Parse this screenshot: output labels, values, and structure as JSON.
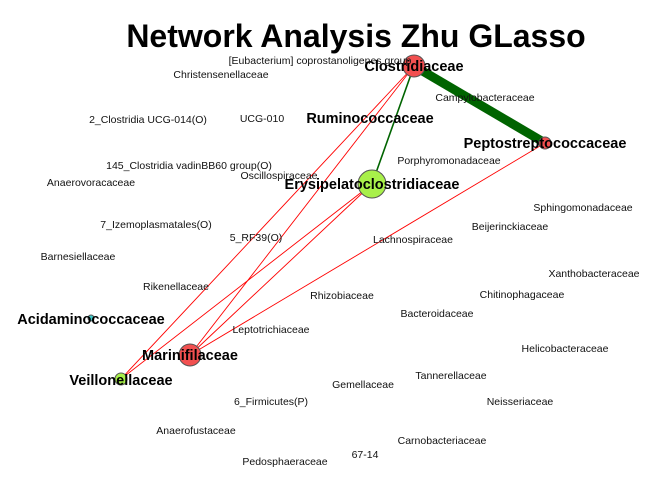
{
  "title": "Network Analysis Zhu GLasso",
  "colors": {
    "negative_edge": "#ff0000",
    "positive_edge": "#006400",
    "node_red": "#f25050",
    "node_green": "#a8f04a",
    "node_cyan": "#40c8c8",
    "node_stroke": "#555555"
  },
  "nodes": [
    {
      "name": "Clostridiaceae",
      "prominent": true,
      "color": "red"
    },
    {
      "name": "Peptostreptococcaceae",
      "prominent": true,
      "color": "red"
    },
    {
      "name": "Erysipelatoclostridiaceae",
      "prominent": true,
      "color": "green"
    },
    {
      "name": "Marinifilaceae",
      "prominent": true,
      "color": "red"
    },
    {
      "name": "Veillonellaceae",
      "prominent": true,
      "color": "green"
    },
    {
      "name": "Acidaminococcaceae",
      "prominent": true,
      "color": "cyan"
    },
    {
      "name": "Ruminococcaceae",
      "prominent": true
    },
    {
      "name": "[Eubacterium] coprostanoligenes group",
      "prominent": false
    },
    {
      "name": "Christensenellaceae",
      "prominent": false
    },
    {
      "name": "Campylobacteraceae",
      "prominent": false
    },
    {
      "name": "2_Clostridia UCG-014(O)",
      "prominent": false
    },
    {
      "name": "UCG-010",
      "prominent": false
    },
    {
      "name": "Porphyromonadaceae",
      "prominent": false
    },
    {
      "name": "145_Clostridia vadinBB60 group(O)",
      "prominent": false
    },
    {
      "name": "Oscillospiraceae",
      "prominent": false
    },
    {
      "name": "Anaerovoracaceae",
      "prominent": false
    },
    {
      "name": "Sphingomonadaceae",
      "prominent": false
    },
    {
      "name": "7_Izemoplasmatales(O)",
      "prominent": false
    },
    {
      "name": "Beijerinckiaceae",
      "prominent": false
    },
    {
      "name": "5_RF39(O)",
      "prominent": false
    },
    {
      "name": "Lachnospiraceae",
      "prominent": false
    },
    {
      "name": "Barnesiellaceae",
      "prominent": false
    },
    {
      "name": "Xanthobacteraceae",
      "prominent": false
    },
    {
      "name": "Rikenellaceae",
      "prominent": false
    },
    {
      "name": "Chitinophagaceae",
      "prominent": false
    },
    {
      "name": "Rhizobiaceae",
      "prominent": false
    },
    {
      "name": "Bacteroidaceae",
      "prominent": false
    },
    {
      "name": "Leptotrichiaceae",
      "prominent": false
    },
    {
      "name": "Helicobacteraceae",
      "prominent": false
    },
    {
      "name": "Tannerellaceae",
      "prominent": false
    },
    {
      "name": "Gemellaceae",
      "prominent": false
    },
    {
      "name": "6_Firmicutes(P)",
      "prominent": false
    },
    {
      "name": "Neisseriaceae",
      "prominent": false
    },
    {
      "name": "Anaerofustaceae",
      "prominent": false
    },
    {
      "name": "Carnobacteriaceae",
      "prominent": false
    },
    {
      "name": "67-14",
      "prominent": false
    },
    {
      "name": "Pedosphaeraceae",
      "prominent": false
    }
  ],
  "edges": [
    {
      "source": "Clostridiaceae",
      "target": "Peptostreptococcaceae",
      "sign": "positive",
      "weight": "strong"
    },
    {
      "source": "Clostridiaceae",
      "target": "Erysipelatoclostridiaceae",
      "sign": "positive",
      "weight": "weak"
    },
    {
      "source": "Clostridiaceae",
      "target": "Marinifilaceae",
      "sign": "negative",
      "weight": "weak"
    },
    {
      "source": "Clostridiaceae",
      "target": "Veillonellaceae",
      "sign": "negative",
      "weight": "weak"
    },
    {
      "source": "Peptostreptococcaceae",
      "target": "Marinifilaceae",
      "sign": "negative",
      "weight": "weak"
    },
    {
      "source": "Erysipelatoclostridiaceae",
      "target": "Marinifilaceae",
      "sign": "negative",
      "weight": "weak"
    },
    {
      "source": "Erysipelatoclostridiaceae",
      "target": "Veillonellaceae",
      "sign": "negative",
      "weight": "weak"
    }
  ]
}
